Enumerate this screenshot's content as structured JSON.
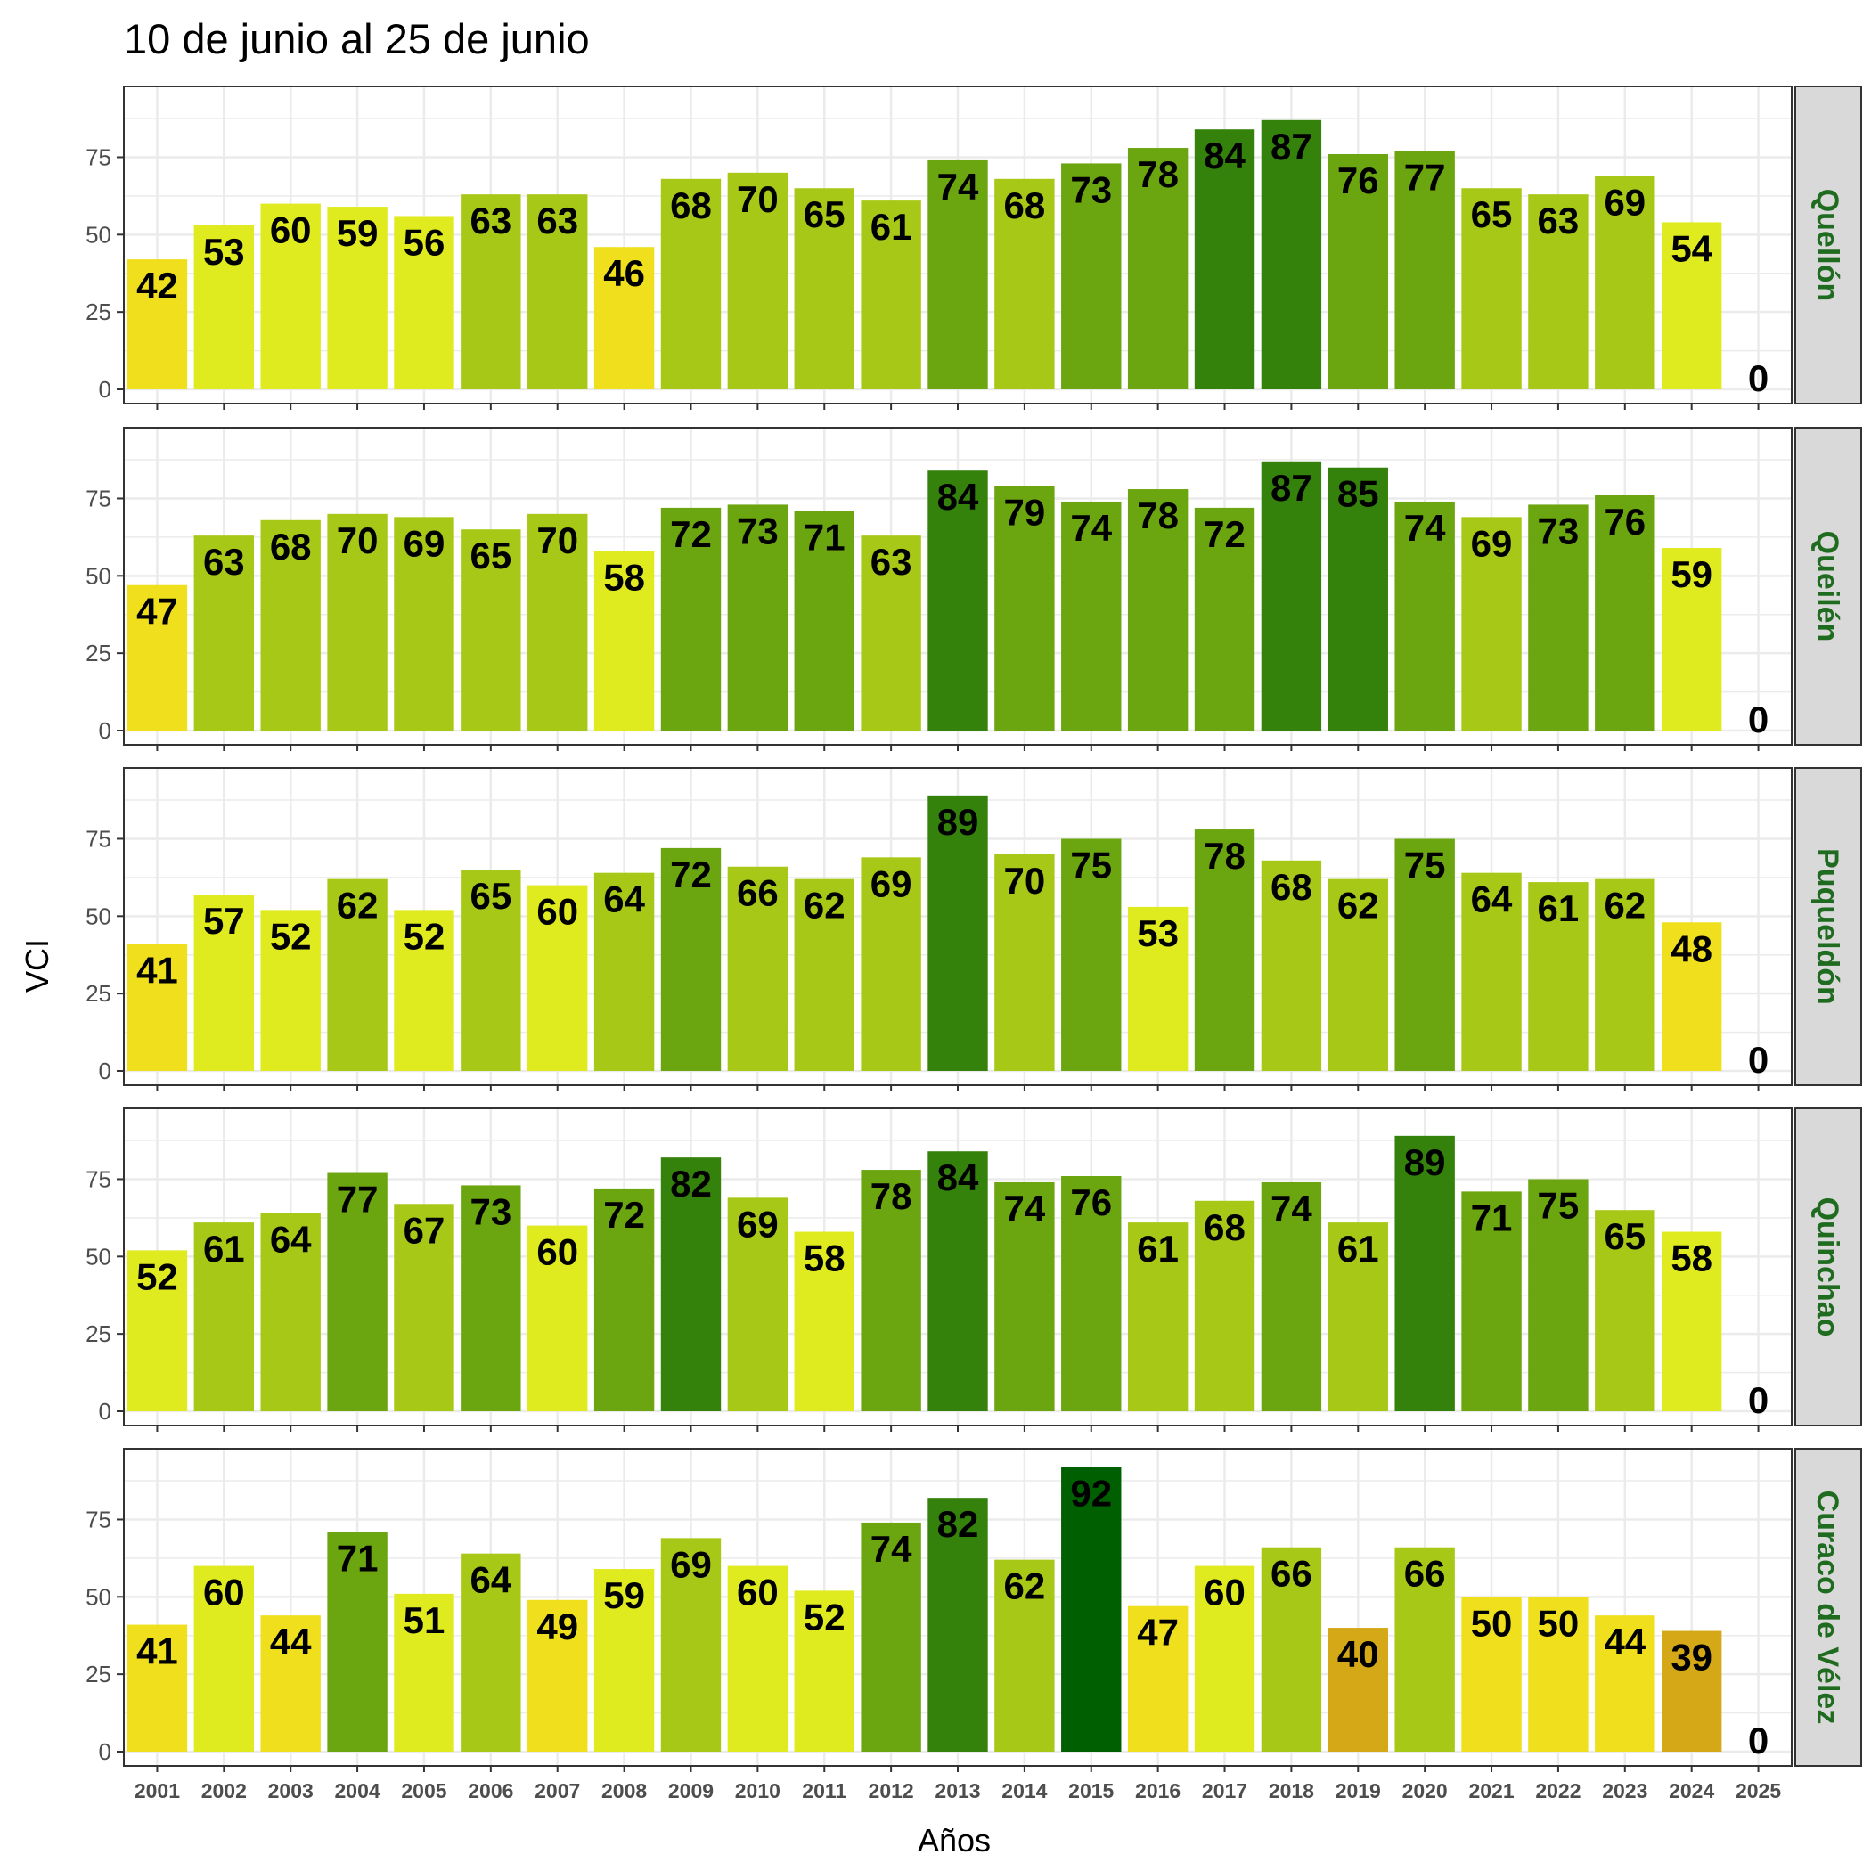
{
  "chart_data": {
    "type": "bar",
    "title": "10 de junio al 25 de junio",
    "xlabel": "Años",
    "ylabel": "VCI",
    "ylim": [
      0,
      95
    ],
    "yticks": [
      "0",
      "25",
      "50",
      "75"
    ],
    "grid": true,
    "legend": "none",
    "categories": [
      "2001",
      "2002",
      "2003",
      "2004",
      "2005",
      "2006",
      "2007",
      "2008",
      "2009",
      "2010",
      "2011",
      "2012",
      "2013",
      "2014",
      "2015",
      "2016",
      "2017",
      "2018",
      "2019",
      "2020",
      "2021",
      "2022",
      "2023",
      "2024",
      "2025"
    ],
    "series": [
      {
        "name": "Quellón",
        "values": [
          42,
          53,
          60,
          59,
          56,
          63,
          63,
          46,
          68,
          70,
          65,
          61,
          74,
          68,
          73,
          78,
          84,
          87,
          76,
          77,
          65,
          63,
          69,
          54,
          0
        ]
      },
      {
        "name": "Queilén",
        "values": [
          47,
          63,
          68,
          70,
          69,
          65,
          70,
          58,
          72,
          73,
          71,
          63,
          84,
          79,
          74,
          78,
          72,
          87,
          85,
          74,
          69,
          73,
          76,
          59,
          0
        ]
      },
      {
        "name": "Puqueldón",
        "values": [
          41,
          57,
          52,
          62,
          52,
          65,
          60,
          64,
          72,
          66,
          62,
          69,
          89,
          70,
          75,
          53,
          78,
          68,
          62,
          75,
          64,
          61,
          62,
          48,
          0
        ]
      },
      {
        "name": "Quinchao",
        "values": [
          52,
          61,
          64,
          77,
          67,
          73,
          60,
          72,
          82,
          69,
          58,
          78,
          84,
          74,
          76,
          61,
          68,
          74,
          61,
          89,
          71,
          75,
          65,
          58,
          0
        ]
      },
      {
        "name": "Curaco de Vélez",
        "values": [
          41,
          60,
          44,
          71,
          51,
          64,
          49,
          59,
          69,
          60,
          52,
          74,
          82,
          62,
          92,
          47,
          60,
          66,
          40,
          66,
          50,
          50,
          44,
          39,
          0
        ]
      }
    ],
    "colors": {
      "strip_text": "#1f6b1f",
      "strip_bg": "#d9d9d9",
      "panel_border": "#333333",
      "grid": "#ebebeb",
      "scale": [
        {
          "max": 40,
          "color": "#d4a816"
        },
        {
          "max": 50,
          "color": "#efdf1c"
        },
        {
          "max": 60,
          "color": "#dfeb1f"
        },
        {
          "max": 70,
          "color": "#a8c817"
        },
        {
          "max": 80,
          "color": "#6ba510"
        },
        {
          "max": 90,
          "color": "#34820b"
        },
        {
          "max": 100,
          "color": "#005f00"
        }
      ]
    }
  }
}
